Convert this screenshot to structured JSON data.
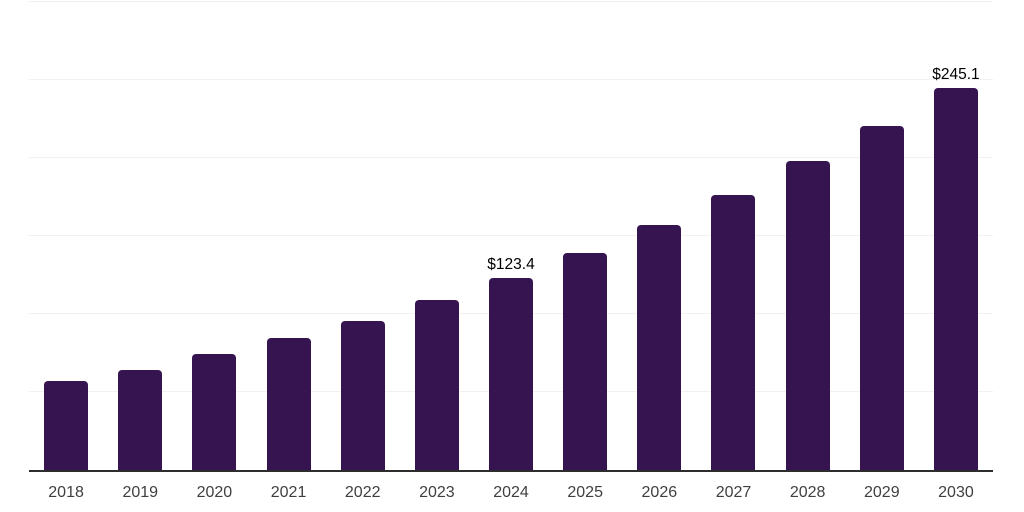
{
  "chart_data": {
    "type": "bar",
    "title": "",
    "xlabel": "",
    "ylabel": "",
    "categories": [
      "2018",
      "2019",
      "2020",
      "2021",
      "2022",
      "2023",
      "2024",
      "2025",
      "2026",
      "2027",
      "2028",
      "2029",
      "2030"
    ],
    "values": [
      57.0,
      64.3,
      74.3,
      84.6,
      95.5,
      108.9,
      123.4,
      139.4,
      157.3,
      176.3,
      198.0,
      220.5,
      245.1
    ],
    "data_labels": [
      "",
      "",
      "",
      "",
      "",
      "",
      "$123.4",
      "",
      "",
      "",
      "",
      "",
      "$245.1"
    ],
    "ylim": [
      0,
      300
    ],
    "gridline_step": 50,
    "grid": true,
    "legend_position": "none",
    "colors": {
      "bar": "#361450",
      "grid": "#f1f1f1",
      "axis": "#2d2d2d",
      "tick_label": "#3f3f3f",
      "data_label": "#000000",
      "background": "#ffffff"
    }
  }
}
